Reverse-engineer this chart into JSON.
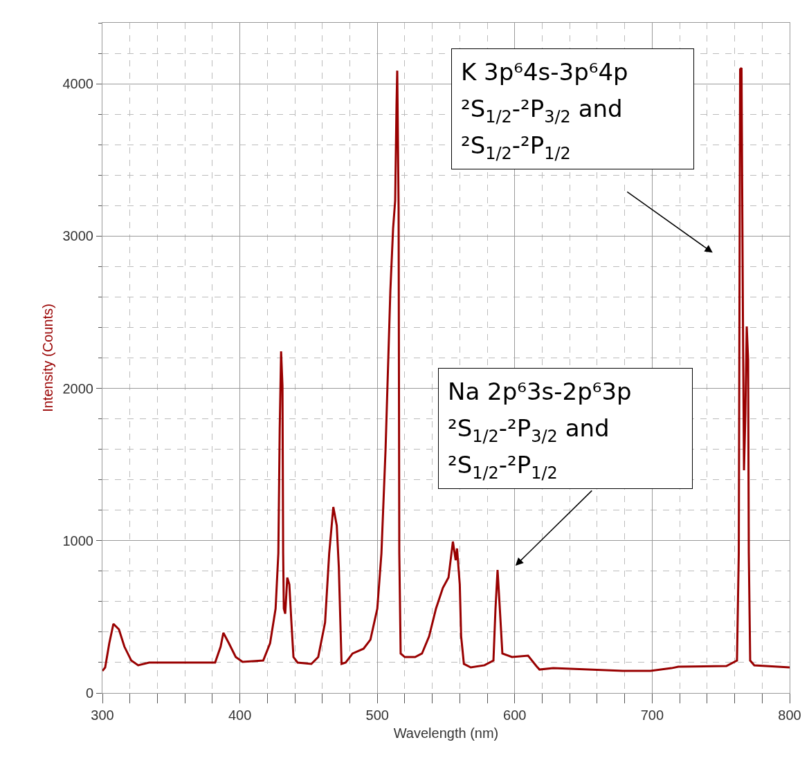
{
  "chart_data": {
    "type": "line",
    "xlabel": "Wavelength (nm)",
    "ylabel": "Intensity (Counts)",
    "grid": true,
    "legend": false,
    "marker": "none",
    "line_style": "solid",
    "xlim": [
      300,
      800
    ],
    "ylim": [
      0,
      4400
    ],
    "xticks": [
      300,
      {
        "value": 320,
        "label": null
      },
      {
        "value": 340,
        "label": null
      },
      {
        "value": 360,
        "label": null
      },
      {
        "value": 380,
        "label": null
      },
      400,
      {
        "value": 420,
        "label": null
      },
      {
        "value": 440,
        "label": null
      },
      {
        "value": 460,
        "label": null
      },
      {
        "value": 480,
        "label": null
      },
      500,
      {
        "value": 520,
        "label": null
      },
      {
        "value": 540,
        "label": null
      },
      {
        "value": 560,
        "label": null
      },
      {
        "value": 580,
        "label": null
      },
      600,
      {
        "value": 620,
        "label": null
      },
      {
        "value": 640,
        "label": null
      },
      {
        "value": 660,
        "label": null
      },
      {
        "value": 680,
        "label": null
      },
      700,
      {
        "value": 720,
        "label": null
      },
      {
        "value": 740,
        "label": null
      },
      {
        "value": 760,
        "label": null
      },
      {
        "value": 780,
        "label": null
      },
      800
    ],
    "yticks": [
      0,
      {
        "value": 200,
        "label": null
      },
      {
        "value": 400,
        "label": null
      },
      {
        "value": 600,
        "label": null
      },
      {
        "value": 800,
        "label": null
      },
      1000,
      {
        "value": 1200,
        "label": null
      },
      {
        "value": 1400,
        "label": null
      },
      {
        "value": 1600,
        "label": null
      },
      {
        "value": 1800,
        "label": null
      },
      2000,
      {
        "value": 2200,
        "label": null
      },
      {
        "value": 2400,
        "label": null
      },
      {
        "value": 2600,
        "label": null
      },
      {
        "value": 2800,
        "label": null
      },
      3000,
      {
        "value": 3200,
        "label": null
      },
      {
        "value": 3400,
        "label": null
      },
      {
        "value": 3600,
        "label": null
      },
      {
        "value": 3800,
        "label": null
      },
      4000,
      {
        "value": 4200,
        "label": null
      },
      {
        "value": 4400,
        "label": null
      }
    ],
    "series": [
      {
        "color": "#990000",
        "x": [
          300,
          302,
          305,
          308,
          312,
          316,
          321,
          326,
          334,
          346,
          366,
          382,
          386,
          388,
          392,
          397,
          402,
          417,
          422,
          426,
          428,
          429,
          430,
          431,
          431.5,
          432,
          433,
          434.5,
          436,
          437.5,
          439,
          442,
          452,
          457,
          462,
          465,
          468,
          470.5,
          472,
          474,
          477,
          482,
          490,
          495,
          500,
          503,
          506,
          509.5,
          511.5,
          513,
          514,
          514.5,
          515.5,
          516,
          517,
          520,
          527.5,
          532.5,
          537.7,
          542.7,
          547.7,
          551.8,
          555,
          557,
          558,
          560,
          561,
          563,
          568,
          578,
          584.5,
          586,
          587.5,
          589,
          591,
          598,
          609.7,
          615.7,
          618,
          628,
          653.5,
          678.6,
          698.8,
          714,
          719,
          754,
          761.7,
          763,
          764,
          765,
          766,
          766.8,
          767.8,
          768.8,
          769.8,
          770.3,
          771.3,
          774.3,
          800
        ],
        "values": [
          145,
          168,
          327,
          454,
          418,
          304,
          213,
          182,
          200,
          200,
          200,
          200,
          304,
          395,
          327,
          236,
          204,
          213,
          327,
          554,
          917,
          1734,
          2243,
          2016,
          917,
          554,
          520,
          758,
          713,
          463,
          236,
          200,
          191,
          236,
          463,
          917,
          1221,
          1099,
          826,
          191,
          200,
          259,
          291,
          350,
          554,
          917,
          1598,
          2643,
          3051,
          3233,
          3868,
          4086,
          3187,
          917,
          259,
          236,
          236,
          259,
          372,
          554,
          690,
          758,
          994,
          872,
          949,
          713,
          372,
          191,
          168,
          182,
          213,
          554,
          808,
          577,
          259,
          236,
          245,
          177,
          154,
          163,
          154,
          145,
          145,
          163,
          172,
          177,
          213,
          917,
          4095,
          4104,
          2506,
          1462,
          1825,
          2406,
          2188,
          917,
          213,
          182,
          168
        ]
      }
    ],
    "annotations": [
      "K 3p⁶4s-3p⁶4p\n²S$_{1/2}$-²P$_{3/2}$ and\n²S$_{1/2}$-²P$_{1/2}$",
      "Na 2p⁶3s-2p⁶3p\n²S$_{1/2}$-²P$_{3/2}$ and\n²S$_{1/2}$-²P$_{1/2}$"
    ]
  }
}
